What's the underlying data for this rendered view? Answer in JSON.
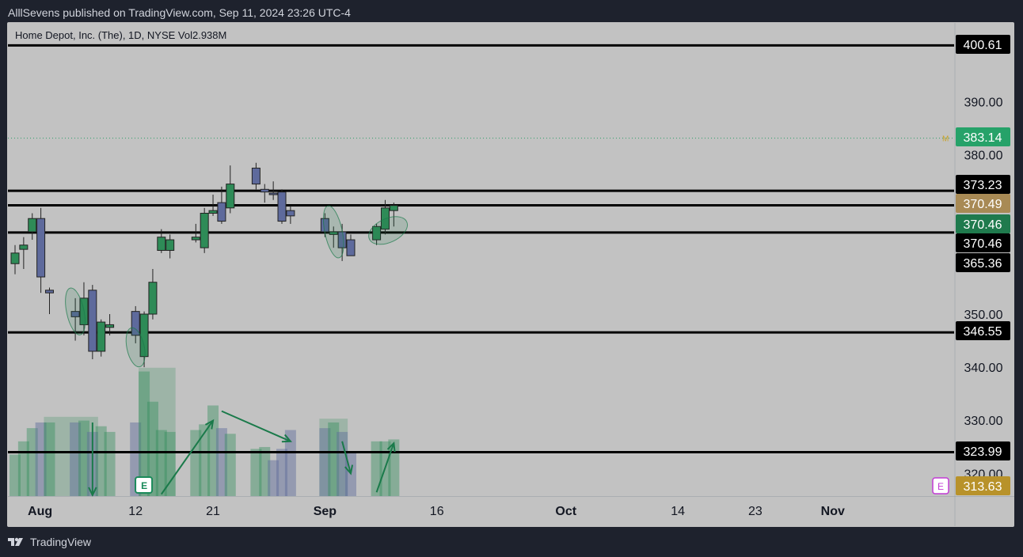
{
  "header": {
    "publish_line": "AlllSevens published on TradingView.com, Sep 11, 2024 23:26 UTC-4"
  },
  "legend": {
    "symbol_line": "Home Depot, Inc. (The), 1D, NYSE  Vol",
    "volume_value": "2.938",
    "volume_unit": "M"
  },
  "footer": {
    "brand": "TradingView"
  },
  "colors": {
    "up": "#2e8b57",
    "down": "#5e6a9c",
    "level_line": "#000000",
    "background": "#c2c2c2",
    "annotation": "#1a7a4a"
  },
  "icons": {
    "footer_logo": "tradingview-logo-icon",
    "earnings": "earnings-icon"
  },
  "chart_data": {
    "type": "candlestick",
    "title": "Home Depot, Inc. (The), 1D, NYSE",
    "ylim": [
      313,
      403
    ],
    "y_ticks": [
      "390.00",
      "380.00",
      "350.00",
      "340.00",
      "330.00",
      "320.00"
    ],
    "x_tick_labels": [
      "Aug",
      "12",
      "21",
      "Sep",
      "16",
      "Oct",
      "14",
      "23",
      "Nov"
    ],
    "x_tick_dates": [
      "2024-08-01",
      "2024-08-12",
      "2024-08-21",
      "2024-09-03",
      "2024-09-16",
      "2024-10-01",
      "2024-10-14",
      "2024-10-23",
      "2024-11-01"
    ],
    "last_date": "2024-11-12",
    "horizontal_levels": [
      {
        "value": 400.61,
        "label": "400.61"
      },
      {
        "value": 373.23,
        "label": "373.23"
      },
      {
        "value": 370.49,
        "label": "370.49"
      },
      {
        "value": 365.36,
        "label": "365.36"
      },
      {
        "value": 346.55,
        "label": "346.55"
      },
      {
        "value": 323.99,
        "label": "323.99"
      }
    ],
    "dotted_level": {
      "value": 383.14,
      "label": "383.14",
      "marker": "M"
    },
    "price_tags": [
      {
        "value": 383.14,
        "label": "383.14",
        "bg": "#26a269",
        "fg": "#ffffff"
      },
      {
        "value": 400.61,
        "label": "400.61",
        "bg": "#000000",
        "fg": "#ffffff"
      },
      {
        "value": 373.23,
        "label": "373.23",
        "bg": "#000000",
        "fg": "#ffffff"
      },
      {
        "value": 370.49,
        "label": "370.49",
        "bg": "#a88a55",
        "fg": "#ffffff"
      },
      {
        "value": 370.46,
        "label": "370.46",
        "bg": "#1f7a4d",
        "fg": "#ffffff"
      },
      {
        "value": 370.46,
        "label": "370.46",
        "bg": "#000000",
        "fg": "#ffffff"
      },
      {
        "value": 365.36,
        "label": "365.36",
        "bg": "#000000",
        "fg": "#ffffff"
      },
      {
        "value": 346.55,
        "label": "346.55",
        "bg": "#000000",
        "fg": "#ffffff"
      },
      {
        "value": 323.99,
        "label": "323.99",
        "bg": "#000000",
        "fg": "#ffffff"
      },
      {
        "value": 313.63,
        "label": "313.63",
        "bg": "#b8922a",
        "fg": "#ffffff"
      }
    ],
    "earnings_marker": "E",
    "candles": [
      {
        "date": "2024-07-29",
        "o": 359.5,
        "h": 363.0,
        "l": 357.5,
        "c": 361.5
      },
      {
        "date": "2024-07-30",
        "o": 362.2,
        "h": 364.5,
        "l": 358.5,
        "c": 363.0
      },
      {
        "date": "2024-07-31",
        "o": 365.5,
        "h": 369.0,
        "l": 364.0,
        "c": 368.0
      },
      {
        "date": "2024-08-01",
        "o": 368.0,
        "h": 370.0,
        "l": 354.0,
        "c": 357.0
      },
      {
        "date": "2024-08-02",
        "o": 354.5,
        "h": 355.0,
        "l": 350.0,
        "c": 354.0
      },
      {
        "date": "2024-08-05",
        "o": 350.5,
        "h": 353.0,
        "l": 345.0,
        "c": 349.5
      },
      {
        "date": "2024-08-06",
        "o": 348.0,
        "h": 356.0,
        "l": 346.0,
        "c": 353.0
      },
      {
        "date": "2024-08-07",
        "o": 354.5,
        "h": 355.5,
        "l": 341.5,
        "c": 343.0
      },
      {
        "date": "2024-08-08",
        "o": 343.0,
        "h": 349.0,
        "l": 342.0,
        "c": 348.5
      },
      {
        "date": "2024-08-09",
        "o": 347.5,
        "h": 350.0,
        "l": 346.0,
        "c": 348.0
      },
      {
        "date": "2024-08-12",
        "o": 350.5,
        "h": 351.5,
        "l": 344.5,
        "c": 346.0
      },
      {
        "date": "2024-08-13",
        "o": 342.0,
        "h": 350.5,
        "l": 340.0,
        "c": 350.0
      },
      {
        "date": "2024-08-14",
        "o": 350.0,
        "h": 358.5,
        "l": 349.0,
        "c": 356.0
      },
      {
        "date": "2024-08-15",
        "o": 362.0,
        "h": 366.0,
        "l": 361.5,
        "c": 364.5
      },
      {
        "date": "2024-08-16",
        "o": 362.0,
        "h": 365.0,
        "l": 360.5,
        "c": 364.0
      },
      {
        "date": "2024-08-19",
        "o": 364.0,
        "h": 367.0,
        "l": 363.5,
        "c": 364.5
      },
      {
        "date": "2024-08-20",
        "o": 362.5,
        "h": 370.0,
        "l": 361.5,
        "c": 369.0
      },
      {
        "date": "2024-08-21",
        "o": 369.0,
        "h": 372.5,
        "l": 368.5,
        "c": 369.5
      },
      {
        "date": "2024-08-22",
        "o": 371.0,
        "h": 374.0,
        "l": 367.0,
        "c": 367.5
      },
      {
        "date": "2024-08-23",
        "o": 370.0,
        "h": 378.0,
        "l": 369.0,
        "c": 374.5
      },
      {
        "date": "2024-08-26",
        "o": 377.5,
        "h": 378.5,
        "l": 373.5,
        "c": 374.5
      },
      {
        "date": "2024-08-27",
        "o": 373.5,
        "h": 374.5,
        "l": 371.0,
        "c": 373.0
      },
      {
        "date": "2024-08-28",
        "o": 372.8,
        "h": 375.0,
        "l": 371.5,
        "c": 372.6
      },
      {
        "date": "2024-08-29",
        "o": 373.0,
        "h": 373.5,
        "l": 367.0,
        "c": 367.5
      },
      {
        "date": "2024-08-30",
        "o": 369.5,
        "h": 370.5,
        "l": 367.0,
        "c": 368.5
      },
      {
        "date": "2024-09-03",
        "o": 368.0,
        "h": 369.0,
        "l": 364.5,
        "c": 365.5
      },
      {
        "date": "2024-09-04",
        "o": 365.0,
        "h": 366.5,
        "l": 362.5,
        "c": 365.5
      },
      {
        "date": "2024-09-05",
        "o": 365.5,
        "h": 367.0,
        "l": 360.0,
        "c": 362.5
      },
      {
        "date": "2024-09-06",
        "o": 364.0,
        "h": 365.0,
        "l": 361.0,
        "c": 361.0
      },
      {
        "date": "2024-09-09",
        "o": 364.0,
        "h": 367.0,
        "l": 363.0,
        "c": 366.5
      },
      {
        "date": "2024-09-10",
        "o": 366.0,
        "h": 371.5,
        "l": 365.0,
        "c": 370.0
      },
      {
        "date": "2024-09-11",
        "o": 369.5,
        "h": 371.0,
        "l": 366.5,
        "c": 370.46
      }
    ],
    "volume": {
      "unit": "M",
      "ymax": 7.0,
      "bars": [
        {
          "date": "2024-07-29",
          "v": 2.2,
          "up": true
        },
        {
          "date": "2024-07-30",
          "v": 2.9,
          "up": true
        },
        {
          "date": "2024-07-31",
          "v": 3.6,
          "up": true
        },
        {
          "date": "2024-08-01",
          "v": 3.9,
          "up": false
        },
        {
          "date": "2024-08-02",
          "v": 3.9,
          "up": true
        },
        {
          "date": "2024-08-05",
          "v": 3.9,
          "up": false
        },
        {
          "date": "2024-08-06",
          "v": 4.0,
          "up": true
        },
        {
          "date": "2024-08-07",
          "v": 3.4,
          "up": false
        },
        {
          "date": "2024-08-08",
          "v": 3.7,
          "up": true
        },
        {
          "date": "2024-08-09",
          "v": 3.4,
          "up": true
        },
        {
          "date": "2024-08-12",
          "v": 3.9,
          "up": false
        },
        {
          "date": "2024-08-13",
          "v": 6.6,
          "up": true
        },
        {
          "date": "2024-08-14",
          "v": 5.0,
          "up": true
        },
        {
          "date": "2024-08-15",
          "v": 3.5,
          "up": true
        },
        {
          "date": "2024-08-16",
          "v": 3.4,
          "up": true
        },
        {
          "date": "2024-08-19",
          "v": 3.5,
          "up": true
        },
        {
          "date": "2024-08-20",
          "v": 3.8,
          "up": true
        },
        {
          "date": "2024-08-21",
          "v": 4.8,
          "up": true
        },
        {
          "date": "2024-08-22",
          "v": 3.6,
          "up": false
        },
        {
          "date": "2024-08-23",
          "v": 3.3,
          "up": true
        },
        {
          "date": "2024-08-26",
          "v": 2.5,
          "up": true
        },
        {
          "date": "2024-08-27",
          "v": 2.6,
          "up": true
        },
        {
          "date": "2024-08-28",
          "v": 1.9,
          "up": false
        },
        {
          "date": "2024-08-29",
          "v": 2.5,
          "up": false
        },
        {
          "date": "2024-08-30",
          "v": 3.5,
          "up": false
        },
        {
          "date": "2024-09-03",
          "v": 3.6,
          "up": false
        },
        {
          "date": "2024-09-04",
          "v": 3.9,
          "up": true
        },
        {
          "date": "2024-09-05",
          "v": 3.4,
          "up": false
        },
        {
          "date": "2024-09-06",
          "v": 2.3,
          "up": false
        },
        {
          "date": "2024-09-09",
          "v": 2.9,
          "up": true
        },
        {
          "date": "2024-09-10",
          "v": 2.9,
          "up": true
        },
        {
          "date": "2024-09-11",
          "v": 3.0,
          "up": true
        }
      ],
      "highlight_blocks": [
        {
          "from": "2024-08-02",
          "to": "2024-08-07",
          "v": 4.2
        },
        {
          "from": "2024-08-13",
          "to": "2024-08-16",
          "v": 6.8
        },
        {
          "from": "2024-09-03",
          "to": "2024-09-05",
          "v": 4.1
        }
      ]
    },
    "annotations": {
      "ellipses": [
        {
          "date": "2024-08-05",
          "price_from": 346.0,
          "price_to": 355.0
        },
        {
          "date": "2024-08-12",
          "price_from": 340.0,
          "price_to": 347.5
        },
        {
          "date": "2024-09-04",
          "price_from": 360.5,
          "price_to": 370.5
        },
        {
          "date": "2024-09-10",
          "price_from": 362.0,
          "price_to": 369.0
        }
      ],
      "volume_arrows": [
        {
          "from": {
            "date": "2024-08-07",
            "v": 3.9
          },
          "to": {
            "date": "2024-08-07",
            "v": 0.05
          }
        },
        {
          "from": {
            "date": "2024-08-15",
            "v": 0.1
          },
          "to": {
            "date": "2024-08-21",
            "v": 4.0
          }
        },
        {
          "from": {
            "date": "2024-08-22",
            "v": 4.5
          },
          "to": {
            "date": "2024-08-30",
            "v": 2.9
          }
        },
        {
          "from": {
            "date": "2024-09-05",
            "v": 2.9
          },
          "to": {
            "date": "2024-09-06",
            "v": 1.2
          }
        },
        {
          "from": {
            "date": "2024-09-09",
            "v": 0.2
          },
          "to": {
            "date": "2024-09-11",
            "v": 2.8
          }
        }
      ],
      "earnings_date": "2024-08-13"
    }
  }
}
